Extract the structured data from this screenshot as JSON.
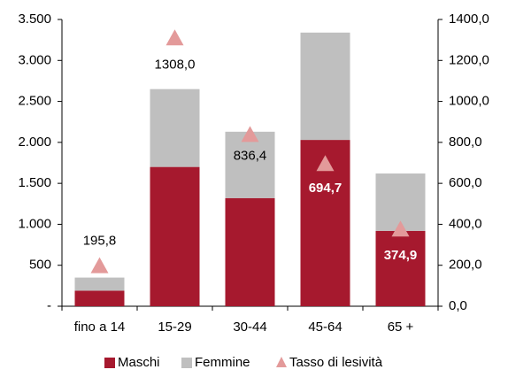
{
  "chart_data": {
    "type": "bar",
    "stacked": true,
    "categories": [
      "fino a 14",
      "15-29",
      "30-44",
      "45-64",
      "65 +"
    ],
    "series": [
      {
        "name": "Maschi",
        "type": "bar",
        "color": "#a6192e",
        "values": [
          190,
          1700,
          1320,
          2030,
          920
        ]
      },
      {
        "name": "Femmine",
        "type": "bar",
        "color": "#bfbfbf",
        "values": [
          160,
          950,
          810,
          1310,
          700
        ]
      },
      {
        "name": "Tasso di lesività",
        "type": "marker",
        "axis": "y2",
        "color": "#e39a9a",
        "values": [
          195.8,
          1308.0,
          836.4,
          694.7,
          374.9
        ],
        "value_labels": [
          "195,8",
          "1308,0",
          "836,4",
          "694,7",
          "374,9"
        ]
      }
    ],
    "ylim": [
      0,
      3500
    ],
    "yticks": [
      {
        "value": 0,
        "label": "-"
      },
      500,
      {
        "value": 1000,
        "label": "1.000"
      },
      {
        "value": 1500,
        "label": "1.500"
      },
      {
        "value": 2000,
        "label": "2.000"
      },
      {
        "value": 2500,
        "label": "2.500"
      },
      {
        "value": 3000,
        "label": "3.000"
      },
      {
        "value": 3500,
        "label": "3.500"
      }
    ],
    "y2lim": [
      0,
      1400
    ],
    "y2ticks": [
      {
        "value": 0,
        "label": "0,0"
      },
      {
        "value": 200,
        "label": "200,0"
      },
      {
        "value": 400,
        "label": "400,0"
      },
      {
        "value": 600,
        "label": "600,0"
      },
      {
        "value": 800,
        "label": "800,0"
      },
      {
        "value": 1000,
        "label": "1000,0"
      },
      {
        "value": 1200,
        "label": "1200,0"
      },
      {
        "value": 1400,
        "label": "1400,0"
      }
    ],
    "grid": false,
    "legend": "bottom"
  }
}
